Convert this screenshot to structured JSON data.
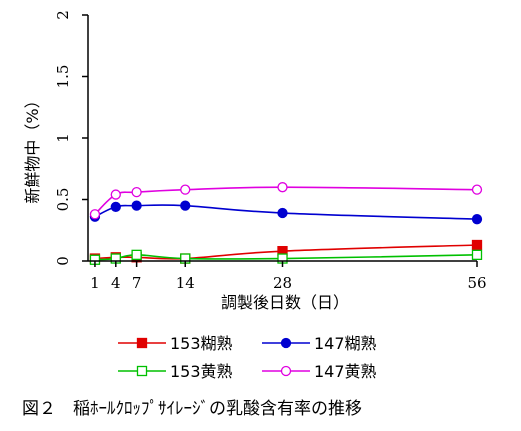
{
  "chart_data": {
    "type": "line",
    "ylabel": "新鮮物中（%）",
    "xlabel": "調製後日数（日）",
    "x": [
      1,
      4,
      7,
      14,
      28,
      56
    ],
    "x_ticks": [
      "1",
      "4",
      "7",
      "14",
      "28",
      "56"
    ],
    "xlim": [
      0,
      56
    ],
    "ylim": [
      0,
      2
    ],
    "y_ticks": [
      "0",
      "0.5",
      "1",
      "1.5",
      "2"
    ],
    "y_tick_values": [
      0,
      0.5,
      1,
      1.5,
      2
    ],
    "grid": false,
    "legend_position": "bottom",
    "series": [
      {
        "name": "153糊熟",
        "color": "#e00000",
        "marker": "square-filled",
        "values": [
          0.02,
          0.03,
          0.03,
          0.02,
          0.08,
          0.13
        ]
      },
      {
        "name": "147糊熟",
        "color": "#0000d0",
        "marker": "circle-filled",
        "values": [
          0.36,
          0.44,
          0.45,
          0.45,
          0.39,
          0.34
        ]
      },
      {
        "name": "153黄熟",
        "color": "#00c000",
        "marker": "square-open",
        "values": [
          0.01,
          0.02,
          0.05,
          0.02,
          0.02,
          0.05
        ]
      },
      {
        "name": "147黄熟",
        "color": "#e000e0",
        "marker": "circle-open",
        "values": [
          0.38,
          0.54,
          0.56,
          0.58,
          0.6,
          0.58
        ]
      }
    ]
  },
  "caption": "図２　稲ﾎｰﾙｸﾛｯﾌﾟｻｲﾚｰｼﾞの乳酸含有率の推移"
}
